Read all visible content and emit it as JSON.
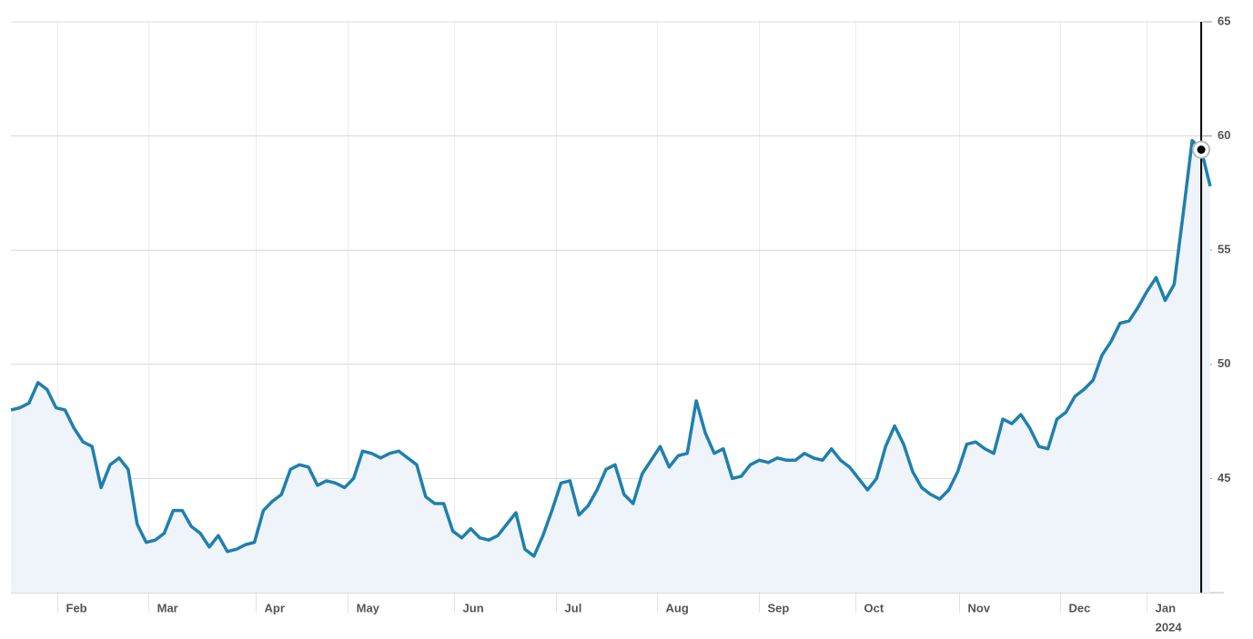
{
  "chart_data": {
    "type": "line",
    "values": [
      48.0,
      48.1,
      48.3,
      49.2,
      48.9,
      48.1,
      48.0,
      47.2,
      46.6,
      46.4,
      44.6,
      45.6,
      45.9,
      45.4,
      43.0,
      42.2,
      42.3,
      42.6,
      43.6,
      43.6,
      42.9,
      42.6,
      42.0,
      42.5,
      41.8,
      41.9,
      42.1,
      42.2,
      43.6,
      44.0,
      44.3,
      45.4,
      45.6,
      45.5,
      44.7,
      44.9,
      44.8,
      44.6,
      45.0,
      46.2,
      46.1,
      45.9,
      46.1,
      46.2,
      45.9,
      45.6,
      44.2,
      43.9,
      43.9,
      42.7,
      42.4,
      42.8,
      42.4,
      42.3,
      42.5,
      43.0,
      43.5,
      41.9,
      41.6,
      42.5,
      43.6,
      44.8,
      44.9,
      43.4,
      43.8,
      44.5,
      45.4,
      45.6,
      44.3,
      43.9,
      45.2,
      45.8,
      46.4,
      45.5,
      46.0,
      46.1,
      48.4,
      47.0,
      46.1,
      46.3,
      45.0,
      45.1,
      45.6,
      45.8,
      45.7,
      45.9,
      45.8,
      45.8,
      46.1,
      45.9,
      45.8,
      46.3,
      45.8,
      45.5,
      45.0,
      44.5,
      45.0,
      46.4,
      47.3,
      46.5,
      45.3,
      44.6,
      44.3,
      44.1,
      44.5,
      45.3,
      46.5,
      46.6,
      46.3,
      46.1,
      47.6,
      47.4,
      47.8,
      47.2,
      46.4,
      46.3,
      47.6,
      47.9,
      48.6,
      48.9,
      49.3,
      50.4,
      51.0,
      51.8,
      51.9,
      52.5,
      53.2,
      53.8,
      52.8,
      53.5,
      56.6,
      59.8,
      59.4,
      57.8
    ],
    "color": "#1f7fae",
    "area_color": "#eef4f9",
    "xticks": [
      {
        "value": 5.2,
        "label": "Feb"
      },
      {
        "value": 15.3,
        "label": "Mar"
      },
      {
        "value": 27.2,
        "label": "Apr"
      },
      {
        "value": 37.4,
        "label": "May"
      },
      {
        "value": 49.2,
        "label": "Jun"
      },
      {
        "value": 60.5,
        "label": "Jul"
      },
      {
        "value": 71.7,
        "label": "Aug"
      },
      {
        "value": 83.0,
        "label": "Sep"
      },
      {
        "value": 93.7,
        "label": "Oct"
      },
      {
        "value": 105.2,
        "label": "Nov"
      },
      {
        "value": 116.4,
        "label": "Dec"
      },
      {
        "value": 126.0,
        "label": "Jan"
      }
    ],
    "year_label": "2024",
    "ylim": [
      40,
      65
    ],
    "yticks": [
      45,
      50,
      55,
      60,
      65
    ],
    "grid": true,
    "highlight": {
      "index": 132
    }
  }
}
